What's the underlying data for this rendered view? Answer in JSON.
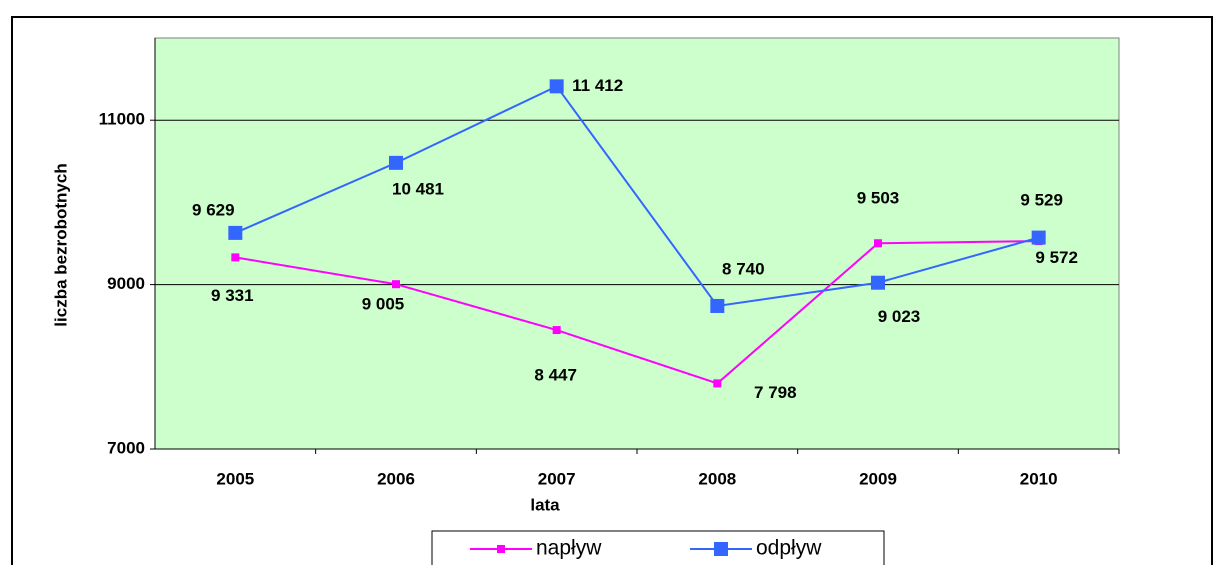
{
  "chart_data": {
    "type": "line",
    "x_label": "lata",
    "y_label": "liczba bezrobotnych",
    "categories": [
      "2005",
      "2006",
      "2007",
      "2008",
      "2009",
      "2010"
    ],
    "series": [
      {
        "name": "napływ",
        "color": "#ff00ff",
        "values": [
          9331,
          9005,
          8447,
          7798,
          9503,
          9529
        ],
        "value_labels": [
          "9 331",
          "9 005",
          "8 447",
          "7 798",
          "9 503",
          "9 529"
        ]
      },
      {
        "name": "odpływ",
        "color": "#3366ff",
        "values": [
          9629,
          10481,
          11412,
          8740,
          9023,
          9572
        ],
        "value_labels": [
          "9 629",
          "10 481",
          "11 412",
          "8 740",
          "9 023",
          "9 572"
        ]
      }
    ],
    "ylim": [
      7000,
      12000
    ],
    "yticks": [
      7000,
      9000,
      11000
    ],
    "grid": true,
    "legend": "bottom"
  }
}
